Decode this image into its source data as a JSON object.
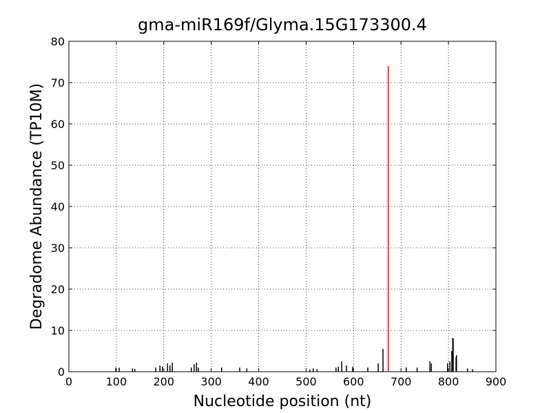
{
  "chart_data": {
    "type": "stem",
    "title": "gma-miR169f/Glyma.15G173300.4",
    "x_label": "Nucleotide position (nt)",
    "y_label": "Degradome Abundance (TP10M)",
    "xlim": [
      0,
      900
    ],
    "ylim": [
      0,
      80
    ],
    "xticks": [
      0,
      100,
      200,
      300,
      400,
      500,
      600,
      700,
      800,
      900
    ],
    "yticks": [
      0,
      10,
      20,
      30,
      40,
      50,
      60,
      70,
      80
    ],
    "grid": true,
    "series": [
      {
        "color": "#000000",
        "x": [
          99,
          106,
          134,
          139,
          183,
          192,
          197,
          208,
          213,
          218,
          258,
          264,
          269,
          273,
          322,
          360,
          375,
          508,
          515,
          523,
          563,
          568,
          575,
          585,
          598,
          630,
          652,
          662,
          711,
          734,
          761,
          764,
          798,
          803,
          807,
          809,
          810,
          816,
          817,
          840,
          851
        ],
        "values": [
          1.0,
          1.0,
          0.8,
          0.7,
          1.0,
          1.5,
          1.2,
          2.0,
          1.5,
          2.2,
          1.0,
          1.8,
          2.2,
          1.0,
          1.0,
          1.0,
          0.8,
          0.5,
          0.8,
          0.6,
          1.0,
          1.2,
          2.5,
          1.5,
          1.2,
          1.0,
          2.0,
          5.5,
          1.0,
          1.0,
          2.5,
          2.0,
          2.0,
          2.5,
          5.0,
          8.2,
          8.0,
          3.5,
          4.0,
          0.8,
          0.6
        ]
      },
      {
        "color": "#ff0000",
        "x": [
          673
        ],
        "values": [
          74
        ]
      }
    ]
  }
}
